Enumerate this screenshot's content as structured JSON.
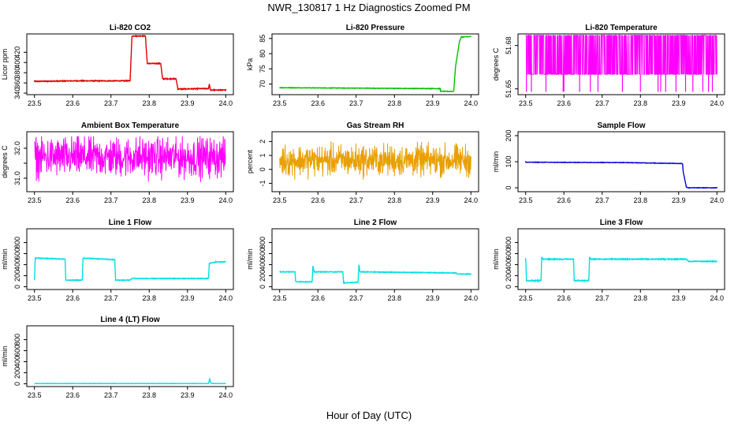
{
  "page": {
    "title": "NWR_130817  1 Hz Diagnostics Zoomed PM",
    "xlabel": "Hour of Day (UTC)"
  },
  "chart_data": [
    {
      "type": "line",
      "title": "Li-820 CO2",
      "ylabel": "Licor ppm",
      "color": "#e00000",
      "xlim": [
        23.48,
        24.02
      ],
      "ylim": [
        337,
        456
      ],
      "x_ticks": [
        "23.5",
        "23.6",
        "23.7",
        "23.8",
        "23.9",
        "24.0"
      ],
      "y_ticks": [
        340,
        360,
        380,
        400,
        420
      ],
      "noise": 0.8,
      "series": [
        {
          "x": [
            23.5,
            23.6,
            23.75,
            23.755,
            23.79,
            23.795,
            23.83,
            23.835,
            23.87,
            23.875,
            23.955,
            23.957,
            23.96,
            23.965,
            24.0
          ],
          "y": [
            363,
            364,
            364,
            452,
            452,
            398,
            398,
            368,
            368,
            348,
            349,
            358,
            346,
            346,
            346
          ]
        }
      ]
    },
    {
      "type": "line",
      "title": "Li-820 Pressure",
      "ylabel": "kPa",
      "color": "#00c000",
      "xlim": [
        23.48,
        24.02
      ],
      "ylim": [
        66.5,
        86.5
      ],
      "x_ticks": [
        "23.5",
        "23.6",
        "23.7",
        "23.8",
        "23.9",
        "24.0"
      ],
      "y_ticks": [
        70,
        75,
        80,
        85
      ],
      "noise": 0.08,
      "series": [
        {
          "x": [
            23.5,
            23.9,
            23.92,
            23.92,
            23.955,
            23.96,
            23.97,
            23.975,
            24.0
          ],
          "y": [
            68.8,
            68.5,
            68.5,
            67.6,
            67.6,
            76,
            84,
            85.5,
            85.6
          ]
        }
      ]
    },
    {
      "type": "line",
      "title": "Li-820 Temperature",
      "ylabel": "degrees C",
      "color": "#ff00ff",
      "xlim": [
        23.48,
        24.02
      ],
      "ylim": [
        51.646,
        51.688
      ],
      "x_ticks": [
        "23.5",
        "23.6",
        "23.7",
        "23.8",
        "23.9",
        "24.0"
      ],
      "y_ticks": [
        51.65,
        51.68
      ],
      "y_tick_labels": [
        "51.65",
        "51.68"
      ],
      "pattern": "quantized",
      "levels": [
        51.66,
        51.687
      ],
      "drops": [
        23.502,
        23.515,
        23.553,
        23.598,
        23.6,
        23.641,
        23.669,
        23.689,
        23.753,
        23.8,
        23.846,
        23.853,
        23.866,
        23.893,
        23.918,
        23.937,
        23.963,
        23.978,
        23.988
      ],
      "drop_value": 51.648,
      "series": [
        {
          "x": [
            23.5,
            24.0
          ],
          "y": [
            51.66,
            51.687
          ]
        }
      ]
    },
    {
      "type": "line",
      "title": "Ambient Box Temperature",
      "ylabel": "degrees C",
      "color": "#ff00ff",
      "xlim": [
        23.48,
        24.02
      ],
      "ylim": [
        30.55,
        32.55
      ],
      "x_ticks": [
        "23.5",
        "23.6",
        "23.7",
        "23.8",
        "23.9",
        "24.0"
      ],
      "y_ticks": [
        31.0,
        31.5,
        32.0
      ],
      "y_tick_labels": [
        "31.0",
        "",
        "32.0"
      ],
      "pattern": "noise",
      "center": 31.7,
      "amplitude": 0.65,
      "series": [
        {
          "x": [
            23.5,
            24.0
          ],
          "y": [
            30.8,
            32.4
          ]
        }
      ]
    },
    {
      "type": "line",
      "title": "Gas Stream RH",
      "ylabel": "percent",
      "color": "#e8a000",
      "xlim": [
        23.48,
        24.02
      ],
      "ylim": [
        -1.6,
        2.7
      ],
      "x_ticks": [
        "23.5",
        "23.6",
        "23.7",
        "23.8",
        "23.9",
        "24.0"
      ],
      "y_ticks": [
        -1,
        0,
        1,
        2
      ],
      "pattern": "noise",
      "center": 0.65,
      "amplitude": 1.1,
      "series": [
        {
          "x": [
            23.5,
            24.0
          ],
          "y": [
            -1.3,
            2.5
          ]
        }
      ]
    },
    {
      "type": "line",
      "title": "Sample Flow",
      "ylabel": "ml/min",
      "color": "#0000e0",
      "xlim": [
        23.48,
        24.02
      ],
      "ylim": [
        -15,
        215
      ],
      "x_ticks": [
        "23.5",
        "23.6",
        "23.7",
        "23.8",
        "23.9",
        "24.0"
      ],
      "y_ticks": [
        0,
        100,
        200
      ],
      "noise": 0.8,
      "series": [
        {
          "x": [
            23.5,
            23.75,
            23.91,
            23.912,
            23.92,
            23.925,
            24.0
          ],
          "y": [
            98,
            97,
            93,
            60,
            3,
            0,
            0
          ]
        }
      ]
    },
    {
      "type": "line",
      "title": "Line 1 Flow",
      "ylabel": "ml/min",
      "color": "#00e0e0",
      "xlim": [
        23.48,
        24.02
      ],
      "ylim": [
        -50,
        1050
      ],
      "x_ticks": [
        "23.5",
        "23.6",
        "23.7",
        "23.8",
        "23.9",
        "24.0"
      ],
      "y_ticks": [
        0,
        200,
        400,
        600,
        800
      ],
      "noise": 6,
      "series": [
        {
          "x": [
            23.5,
            23.502,
            23.505,
            23.58,
            23.582,
            23.625,
            23.627,
            23.71,
            23.712,
            23.75,
            23.755,
            23.955,
            23.957,
            23.975,
            24.0
          ],
          "y": [
            120,
            520,
            520,
            500,
            120,
            120,
            520,
            490,
            120,
            120,
            150,
            150,
            420,
            450,
            450
          ]
        }
      ]
    },
    {
      "type": "line",
      "title": "Line 2 Flow",
      "ylabel": "ml/min",
      "color": "#00e0e0",
      "xlim": [
        23.48,
        24.02
      ],
      "ylim": [
        -50,
        1050
      ],
      "x_ticks": [
        "23.5",
        "23.6",
        "23.7",
        "23.8",
        "23.9",
        "24.0"
      ],
      "y_ticks": [
        0,
        200,
        400,
        600,
        800
      ],
      "noise": 6,
      "series": [
        {
          "x": [
            23.5,
            23.54,
            23.542,
            23.585,
            23.587,
            23.59,
            23.665,
            23.667,
            23.705,
            23.707,
            23.71,
            23.96,
            23.965,
            24.0
          ],
          "y": [
            270,
            270,
            90,
            90,
            380,
            270,
            270,
            70,
            80,
            400,
            270,
            250,
            230,
            230
          ]
        }
      ]
    },
    {
      "type": "line",
      "title": "Line 3 Flow",
      "ylabel": "ml/min",
      "color": "#00e0e0",
      "xlim": [
        23.48,
        24.02
      ],
      "ylim": [
        -50,
        1050
      ],
      "x_ticks": [
        "23.5",
        "23.6",
        "23.7",
        "23.8",
        "23.9",
        "24.0"
      ],
      "y_ticks": [
        0,
        200,
        400,
        600,
        800
      ],
      "noise": 8,
      "series": [
        {
          "x": [
            23.5,
            23.502,
            23.54,
            23.542,
            23.545,
            23.625,
            23.627,
            23.665,
            23.667,
            23.67,
            23.92,
            23.925,
            24.0
          ],
          "y": [
            520,
            110,
            110,
            540,
            500,
            500,
            110,
            110,
            540,
            500,
            500,
            460,
            460
          ]
        }
      ]
    },
    {
      "type": "line",
      "title": "Line 4 (LT) Flow",
      "ylabel": "ml/min",
      "color": "#00e0e0",
      "xlim": [
        23.48,
        24.02
      ],
      "ylim": [
        -50,
        1050
      ],
      "x_ticks": [
        "23.5",
        "23.6",
        "23.7",
        "23.8",
        "23.9",
        "24.0"
      ],
      "y_ticks": [
        0,
        200,
        400,
        600,
        800
      ],
      "noise": 2,
      "series": [
        {
          "x": [
            23.5,
            23.955,
            23.958,
            23.961,
            23.964,
            24.0
          ],
          "y": [
            5,
            5,
            90,
            10,
            5,
            5
          ]
        }
      ]
    }
  ]
}
